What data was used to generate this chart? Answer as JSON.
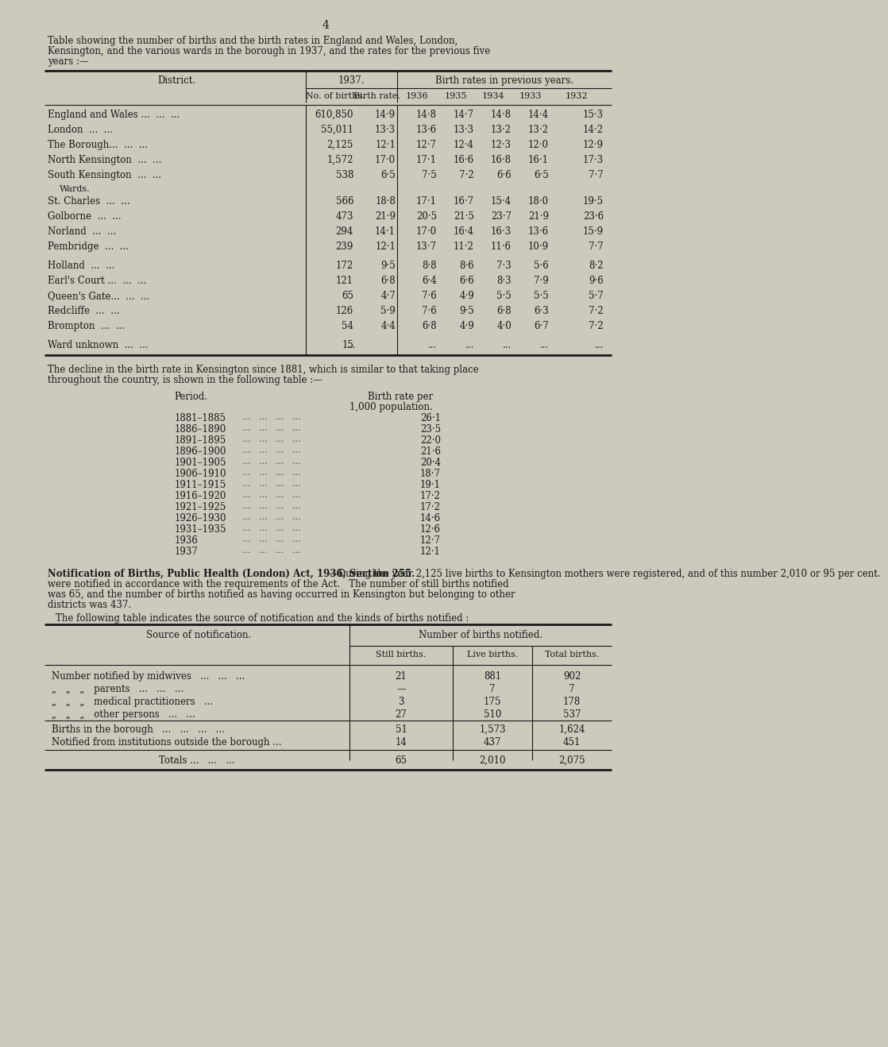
{
  "bg_color": "#cdc9bc",
  "text_color": "#1a1a1a",
  "page_num": "4",
  "intro_text_lines": [
    "Table showing the number of births and the birth rates in England and Wales, London,",
    "Kensington, and the various wards in the borough in 1937, and the rates for the previous five",
    "years :—"
  ],
  "t1_header_district": "District.",
  "t1_header_1937": "1937.",
  "t1_header_prev": "Birth rates in previous years.",
  "t1_header_nobirths": "No. of births.",
  "t1_header_birthrate": "Birth rate.",
  "t1_header_years": [
    "1936",
    "1935",
    "1934",
    "1933",
    "1932"
  ],
  "t1_rows": [
    {
      "d": "England and Wales ...",
      "dots": true,
      "nb": "610,850",
      "br": "14·9",
      "p": [
        "14·8",
        "14·7",
        "14·8",
        "14·4",
        "15·3"
      ],
      "gap_before": false,
      "subhdr": false
    },
    {
      "d": "London",
      "dots": true,
      "nb": "55,011",
      "br": "13·3",
      "p": [
        "13·6",
        "13·3",
        "13·2",
        "13·2",
        "14·2"
      ],
      "gap_before": false,
      "subhdr": false
    },
    {
      "d": "The Borough...",
      "dots": true,
      "nb": "2,125",
      "br": "12·1",
      "p": [
        "12·7",
        "12·4",
        "12·3",
        "12·0",
        "12·9"
      ],
      "gap_before": false,
      "subhdr": false
    },
    {
      "d": "North Kensington",
      "dots": true,
      "nb": "1,572",
      "br": "17·0",
      "p": [
        "17·1",
        "16·6",
        "16·8",
        "16·1",
        "17·3"
      ],
      "gap_before": false,
      "subhdr": false
    },
    {
      "d": "South Kensington",
      "dots": true,
      "nb": "538",
      "br": "6·5",
      "p": [
        "7·5",
        "7·2",
        "6·6",
        "6·5",
        "7·7"
      ],
      "gap_before": false,
      "subhdr": false
    },
    {
      "d": "Wards.",
      "dots": false,
      "nb": "",
      "br": "",
      "p": [
        "",
        "",
        "",
        "",
        ""
      ],
      "gap_before": false,
      "subhdr": true
    },
    {
      "d": "St. Charles",
      "dots": true,
      "nb": "566",
      "br": "18·8",
      "p": [
        "17·1",
        "16·7",
        "15·4",
        "18·0",
        "19·5"
      ],
      "gap_before": false,
      "subhdr": false
    },
    {
      "d": "Golborne",
      "dots": true,
      "nb": "473",
      "br": "21·9",
      "p": [
        "20·5",
        "21·5",
        "23·7",
        "21·9",
        "23·6"
      ],
      "gap_before": false,
      "subhdr": false
    },
    {
      "d": "Norland",
      "dots": true,
      "nb": "294",
      "br": "14·1",
      "p": [
        "17·0",
        "16·4",
        "16·3",
        "13·6",
        "15·9"
      ],
      "gap_before": false,
      "subhdr": false
    },
    {
      "d": "Pembridge",
      "dots": true,
      "nb": "239",
      "br": "12·1",
      "p": [
        "13·7",
        "11·2",
        "11·6",
        "10·9",
        "7·7"
      ],
      "gap_before": false,
      "subhdr": false
    },
    {
      "d": "Holland",
      "dots": true,
      "nb": "172",
      "br": "9·5",
      "p": [
        "8·8",
        "8·6",
        "7·3",
        "5·6",
        "8·2"
      ],
      "gap_before": true,
      "subhdr": false
    },
    {
      "d": "Earl's Court ...",
      "dots": true,
      "nb": "121",
      "br": "6·8",
      "p": [
        "6·4",
        "6·6",
        "8·3",
        "7·9",
        "9·6"
      ],
      "gap_before": false,
      "subhdr": false
    },
    {
      "d": "Queen's Gate...",
      "dots": true,
      "nb": "65",
      "br": "4·7",
      "p": [
        "7·6",
        "4·9",
        "5·5",
        "5·5",
        "5·7"
      ],
      "gap_before": false,
      "subhdr": false
    },
    {
      "d": "Redcliffe",
      "dots": true,
      "nb": "126",
      "br": "5·9",
      "p": [
        "7·6",
        "9·5",
        "6·8",
        "6·3",
        "7·2"
      ],
      "gap_before": false,
      "subhdr": false
    },
    {
      "d": "Brompton",
      "dots": true,
      "nb": "54",
      "br": "4·4",
      "p": [
        "6·8",
        "4·9",
        "4·0",
        "6·7",
        "7·2"
      ],
      "gap_before": false,
      "subhdr": false
    },
    {
      "d": "Ward unknown",
      "dots": true,
      "nb": "15",
      "br": "...",
      "p": [
        "...",
        "...",
        "...",
        "...",
        "..."
      ],
      "gap_before": true,
      "subhdr": false
    }
  ],
  "decline_para": [
    "The decline in the birth rate in Kensington since 1881, which is similar to that taking place",
    "throughout the country, is shown in the following table :—"
  ],
  "decline_col1": "Period.",
  "decline_col2a": "Birth rate per",
  "decline_col2b": "1,000 population.",
  "decline_rows": [
    [
      "1881–1885",
      "26·1"
    ],
    [
      "1886–1890",
      "23·5"
    ],
    [
      "1891–1895",
      "22·0"
    ],
    [
      "1896–1900",
      "21·6"
    ],
    [
      "1901–1905",
      "20·4"
    ],
    [
      "1906–1910",
      "18·7"
    ],
    [
      "1911–1915",
      "19·1"
    ],
    [
      "1916–1920",
      "17·2"
    ],
    [
      "1921–1925",
      "17·2"
    ],
    [
      "1926–1930",
      "14·6"
    ],
    [
      "1931–1935",
      "12·6"
    ],
    [
      "1936",
      "12·7"
    ],
    [
      "1937",
      "12·1"
    ]
  ],
  "notif_bold": "Notification of Births, Public Health (London) Act, 1936, Section 255.",
  "notif_rest_lines": [
    "—During the year 2,125 live births to Kensington mothers were registered, and of this number 2,010 or 95 per cent.",
    "were notified in accordance with the requirements of the Act.   The number of still births notified",
    "was 65, and the number of births notified as having occurred in Kensington but belonging to other",
    "districts was 437."
  ],
  "following_line": "The following table indicates the source of notification and the kinds of births notified :",
  "t2_src_hdr": "Source of notification.",
  "t2_num_hdr": "Number of births notified.",
  "t2_col_still": "Still births.",
  "t2_col_live": "Live births.",
  "t2_col_total": "Total births.",
  "t2_rows": [
    {
      "s": "Number notified by midwives   ...   ...   ...",
      "still": "21",
      "live": "881",
      "total": "902",
      "gap": false
    },
    {
      "s": "„ „ „ parents   ...   ...   ...",
      "still": "—",
      "live": "7",
      "total": "7",
      "gap": false
    },
    {
      "s": "„ „ „ medical practitioners   ...",
      "still": "3",
      "live": "175",
      "total": "178",
      "gap": false
    },
    {
      "s": "„ „ „ other persons   ...   ...",
      "still": "27",
      "live": "510",
      "total": "537",
      "gap": false
    },
    {
      "s": "Births in the borough   ...   ...   ...   ...",
      "still": "51",
      "live": "1,573",
      "total": "1,624",
      "gap": true
    },
    {
      "s": "Notified from institutions outside the borough ...",
      "still": "14",
      "live": "437",
      "total": "451",
      "gap": false
    }
  ],
  "t2_total_row": {
    "s": "Totals ...   ...   ...",
    "still": "65",
    "live": "2,010",
    "total": "2,075"
  }
}
